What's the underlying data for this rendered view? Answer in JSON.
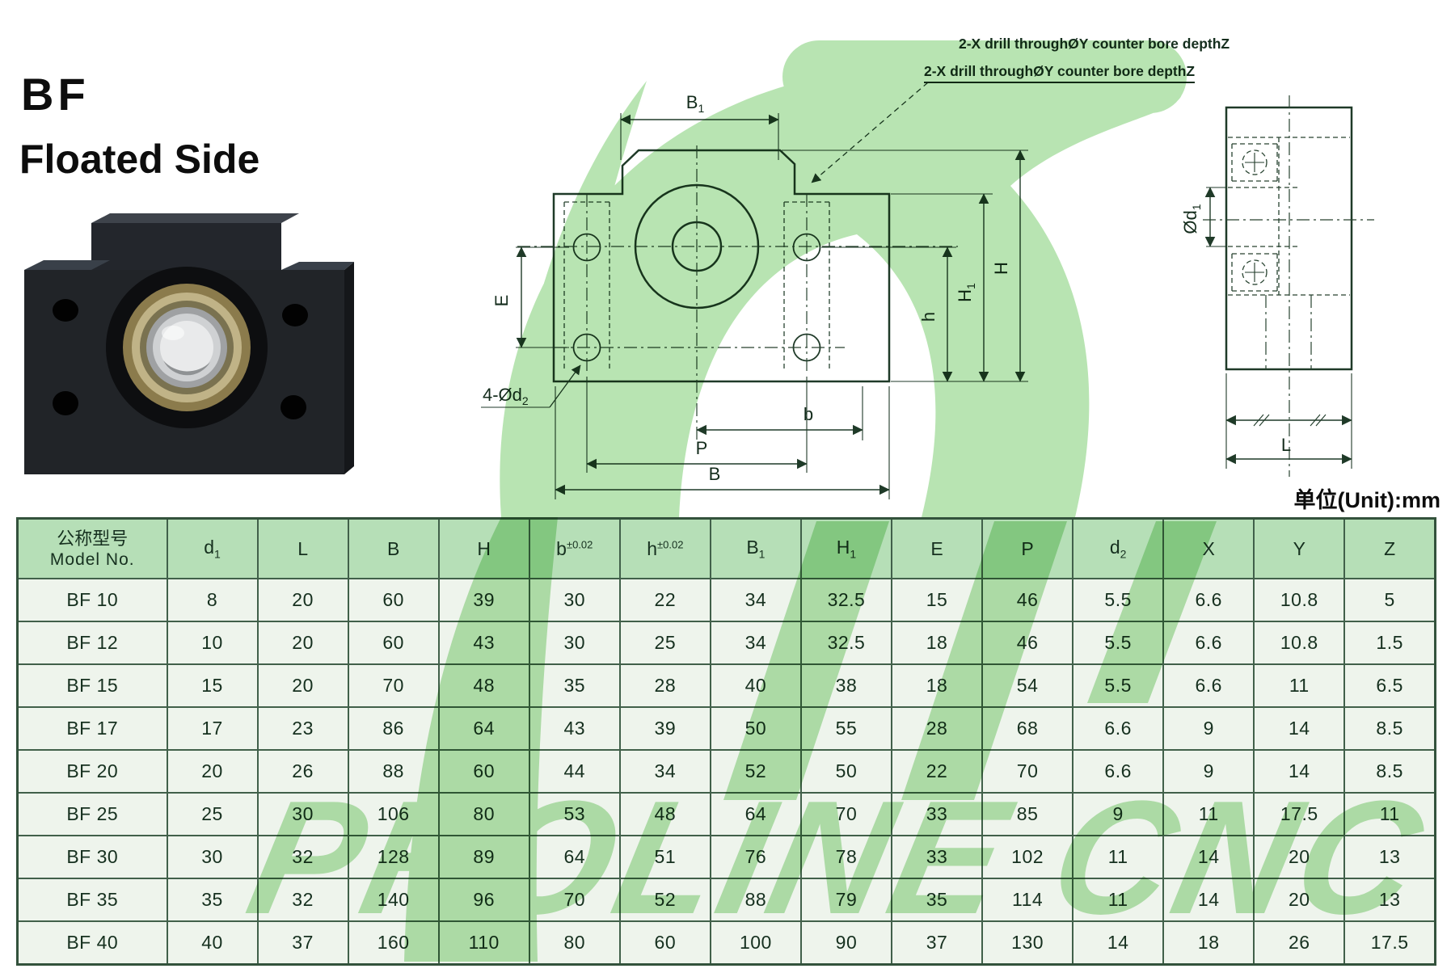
{
  "page": {
    "title_line1": "BF",
    "title_line2": "Floated Side",
    "unit_label": "单位(Unit):mm",
    "watermark_text": "PROLINE CNC"
  },
  "drawing": {
    "annotation": "2-X drill throughØY counter bore depthZ",
    "annotation_clipped": "2-X drill throughØY counter bore depthZ",
    "labels": {
      "b1_base": "B",
      "b1_sub": "1",
      "e": "E",
      "hole_base": "4-Ød",
      "hole_sub": "2",
      "b": "b",
      "p": "P",
      "B": "B",
      "h": "h",
      "h1_base": "H",
      "h1_sub": "1",
      "H": "H",
      "d1_base": "Ød",
      "d1_sub": "1",
      "l": "L"
    },
    "colors": {
      "line": "#1f3a28",
      "watermark_green": "#b8e4b2"
    }
  },
  "table": {
    "header": {
      "model_zh": "公称型号",
      "model_en": "Model No.",
      "columns": [
        {
          "l": "d",
          "sub": "1"
        },
        {
          "l": "L"
        },
        {
          "l": "B"
        },
        {
          "l": "H"
        },
        {
          "l": "b",
          "sup": "±0.02"
        },
        {
          "l": "h",
          "sup": "±0.02"
        },
        {
          "l": "B",
          "sub": "1"
        },
        {
          "l": "H",
          "sub": "1"
        },
        {
          "l": "E"
        },
        {
          "l": "P"
        },
        {
          "l": "d",
          "sub": "2"
        },
        {
          "l": "X"
        },
        {
          "l": "Y"
        },
        {
          "l": "Z"
        }
      ]
    },
    "rows": [
      {
        "model": "BF 10",
        "values": [
          "8",
          "20",
          "60",
          "39",
          "30",
          "22",
          "34",
          "32.5",
          "15",
          "46",
          "5.5",
          "6.6",
          "10.8",
          "5"
        ]
      },
      {
        "model": "BF 12",
        "values": [
          "10",
          "20",
          "60",
          "43",
          "30",
          "25",
          "34",
          "32.5",
          "18",
          "46",
          "5.5",
          "6.6",
          "10.8",
          "1.5"
        ]
      },
      {
        "model": "BF 15",
        "values": [
          "15",
          "20",
          "70",
          "48",
          "35",
          "28",
          "40",
          "38",
          "18",
          "54",
          "5.5",
          "6.6",
          "11",
          "6.5"
        ]
      },
      {
        "model": "BF 17",
        "values": [
          "17",
          "23",
          "86",
          "64",
          "43",
          "39",
          "50",
          "55",
          "28",
          "68",
          "6.6",
          "9",
          "14",
          "8.5"
        ]
      },
      {
        "model": "BF 20",
        "values": [
          "20",
          "26",
          "88",
          "60",
          "44",
          "34",
          "52",
          "50",
          "22",
          "70",
          "6.6",
          "9",
          "14",
          "8.5"
        ]
      },
      {
        "model": "BF 25",
        "values": [
          "25",
          "30",
          "106",
          "80",
          "53",
          "48",
          "64",
          "70",
          "33",
          "85",
          "9",
          "11",
          "17.5",
          "11"
        ]
      },
      {
        "model": "BF 30",
        "values": [
          "30",
          "32",
          "128",
          "89",
          "64",
          "51",
          "76",
          "78",
          "33",
          "102",
          "11",
          "14",
          "20",
          "13"
        ]
      },
      {
        "model": "BF 35",
        "values": [
          "35",
          "32",
          "140",
          "96",
          "70",
          "52",
          "88",
          "79",
          "35",
          "114",
          "11",
          "14",
          "20",
          "13"
        ]
      },
      {
        "model": "BF 40",
        "values": [
          "40",
          "37",
          "160",
          "110",
          "80",
          "60",
          "100",
          "90",
          "37",
          "130",
          "14",
          "18",
          "26",
          "17.5"
        ]
      }
    ]
  }
}
